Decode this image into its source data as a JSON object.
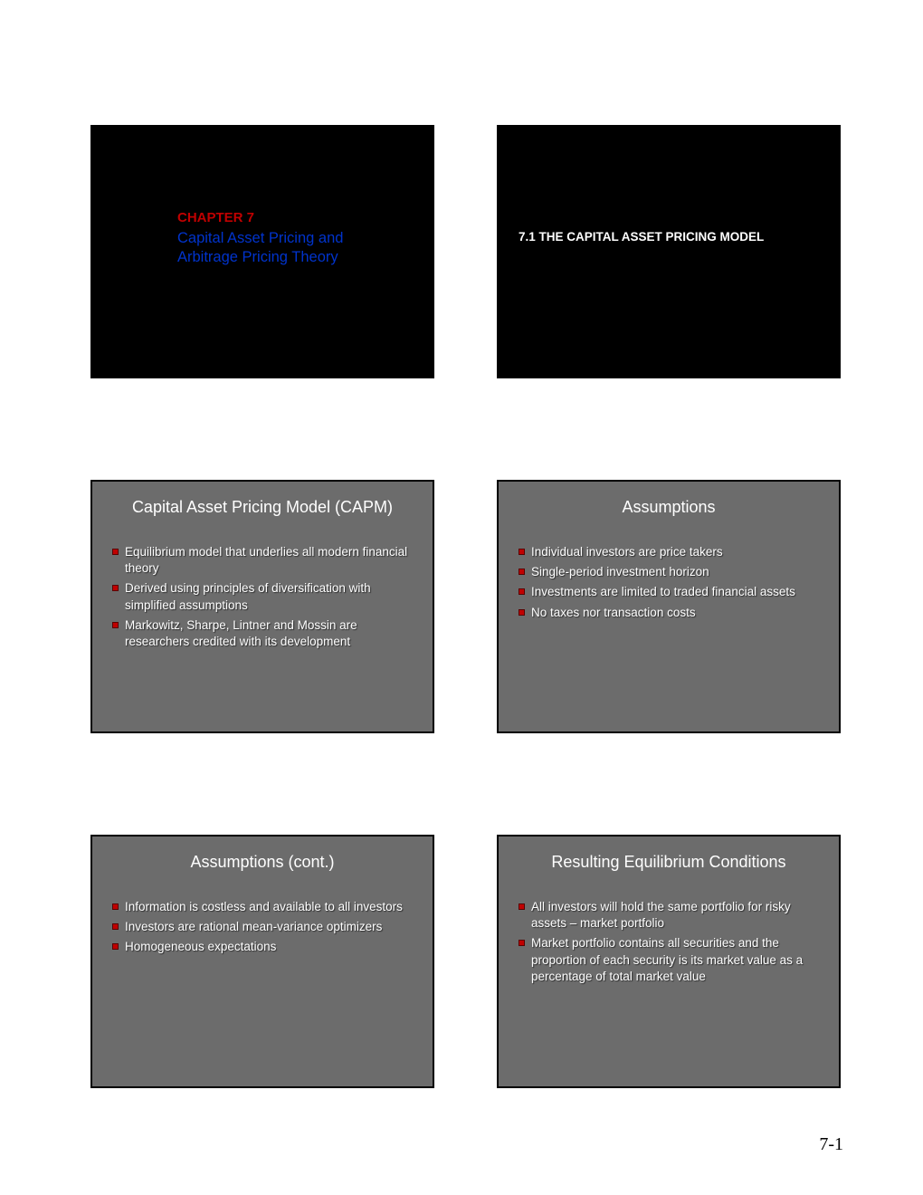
{
  "page_number": "7-1",
  "slides": [
    {
      "layout": "title_black",
      "chapter_label": "CHAPTER 7",
      "title_lines": [
        "Capital Asset Pricing and",
        "Arbitrage Pricing Theory"
      ]
    },
    {
      "layout": "section_black",
      "section_title": "7.1  THE CAPITAL ASSET PRICING MODEL"
    },
    {
      "layout": "content",
      "title": "Capital Asset Pricing Model (CAPM)",
      "bullets": [
        "Equilibrium model that underlies all modern financial theory",
        "Derived using principles of diversification with simplified assumptions",
        "Markowitz, Sharpe, Lintner and Mossin are researchers credited with its development"
      ]
    },
    {
      "layout": "content",
      "title": "Assumptions",
      "bullets": [
        "Individual investors are price takers",
        "Single-period investment horizon",
        "Investments are limited to traded financial assets",
        "No taxes nor transaction costs"
      ]
    },
    {
      "layout": "content",
      "title": "Assumptions (cont.)",
      "bullets": [
        "Information is costless and available to all investors",
        "Investors are rational mean-variance optimizers",
        "Homogeneous expectations"
      ]
    },
    {
      "layout": "content",
      "title": "Resulting Equilibrium Conditions",
      "bullets": [
        "All investors will hold the same portfolio for risky assets – market portfolio",
        "Market portfolio contains all securities and the proportion of each security is its market value as a percentage of total market value"
      ]
    }
  ],
  "colors": {
    "slide_bg": "#6c6c6c",
    "black": "#000000",
    "chapter_red": "#c00000",
    "title_blue": "#0033cc",
    "text_white": "#ffffff",
    "bullet_fill": "#c00000",
    "bullet_border": "#5a0000"
  }
}
